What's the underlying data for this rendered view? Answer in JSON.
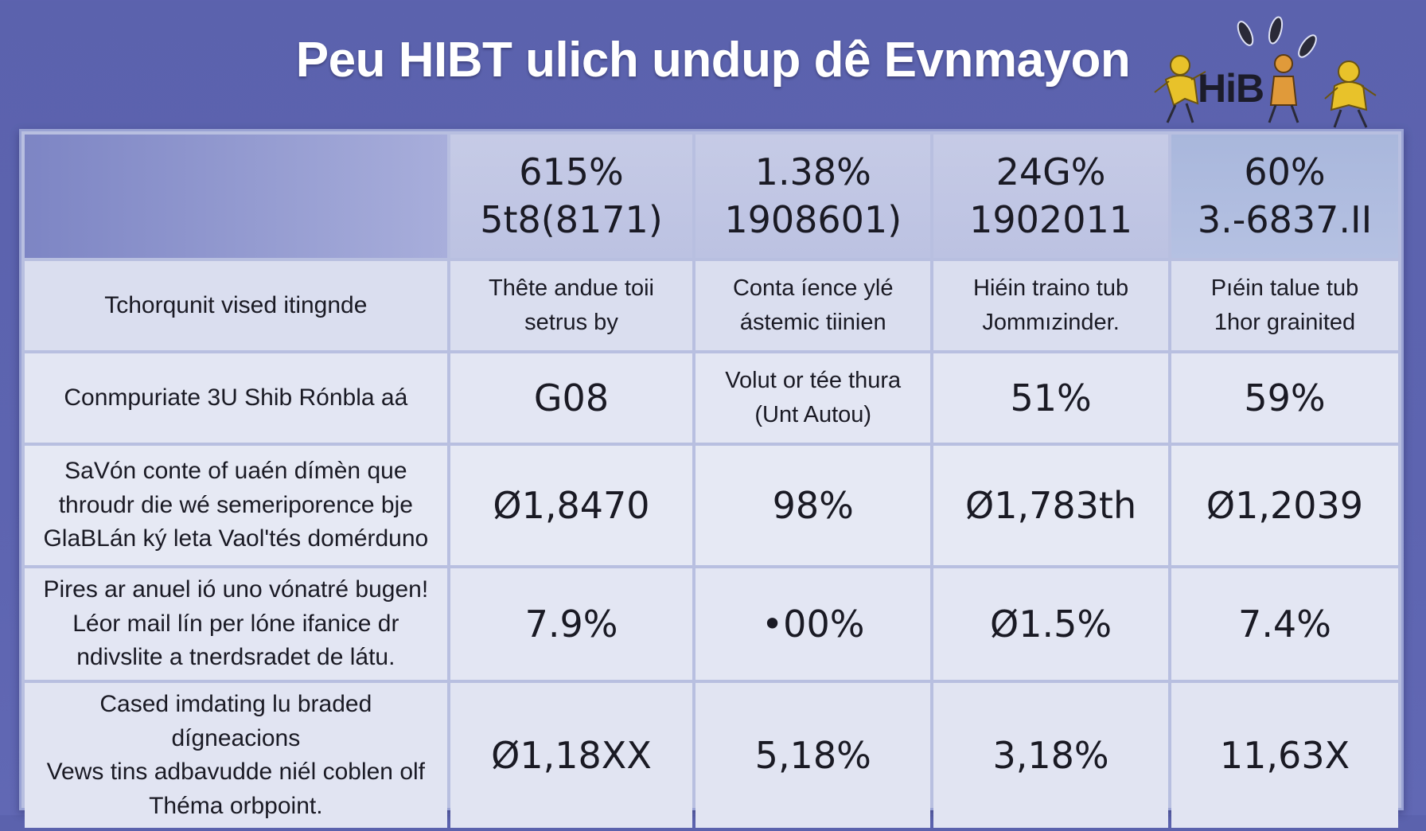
{
  "title": "Peu HIBT ulich undup dê Evnmayon",
  "logo": {
    "text": "HiB",
    "icon": "cartoon-figures-logo"
  },
  "table": {
    "header": [
      {
        "line1": "615%",
        "line2": "5t8(8171)"
      },
      {
        "line1": "1.38%",
        "line2": "1908601)"
      },
      {
        "line1": "24G%",
        "line2": "1902011"
      },
      {
        "line1": "60%",
        "line2": "3.-6837.II"
      }
    ],
    "rows": [
      {
        "label": [
          "Tchorqunit vised itingnde"
        ],
        "cells": [
          [
            "Thête andue toii",
            "setrus by"
          ],
          [
            "Conta íence ylé",
            "ástemic tiinien"
          ],
          [
            "Hiéin traino tub",
            "Jommızinder."
          ],
          [
            "Pıéin talue tub",
            "1hor grainited"
          ]
        ]
      },
      {
        "label": [
          "Conmpuriate 3U Shib Rónbla aá"
        ],
        "cells": [
          [
            "G08"
          ],
          [
            "Volut or tée thura",
            "(Unt Autou)"
          ],
          [
            "51%"
          ],
          [
            "59%"
          ]
        ]
      },
      {
        "label": [
          "SaVón conte of uaén dímèn que",
          "throudr die wé semeriporence bje",
          "GlaBLán ký leta Vaol'tés domérduno"
        ],
        "cells": [
          [
            "Ø1,8470"
          ],
          [
            "98%"
          ],
          [
            "Ø1,783th"
          ],
          [
            "Ø1,2039"
          ]
        ]
      },
      {
        "label": [
          "Pires ar anuel ió uno vónatré bugen!",
          "Léor mail lín per lóne ifanice dr",
          "ndivslite a tnerdsradet de látu."
        ],
        "cells": [
          [
            "7.9%"
          ],
          [
            "•00%"
          ],
          [
            "Ø1.5%"
          ],
          [
            "7.4%"
          ]
        ]
      },
      {
        "label": [
          "Cased imdating lu braded dígneacions",
          "Vews tins adbavudde niél coblen olf",
          "Théma orbpoint."
        ],
        "cells": [
          [
            "Ø1,18XX"
          ],
          [
            "5,18%"
          ],
          [
            "3,18%"
          ],
          [
            "11,63X"
          ]
        ]
      }
    ]
  }
}
